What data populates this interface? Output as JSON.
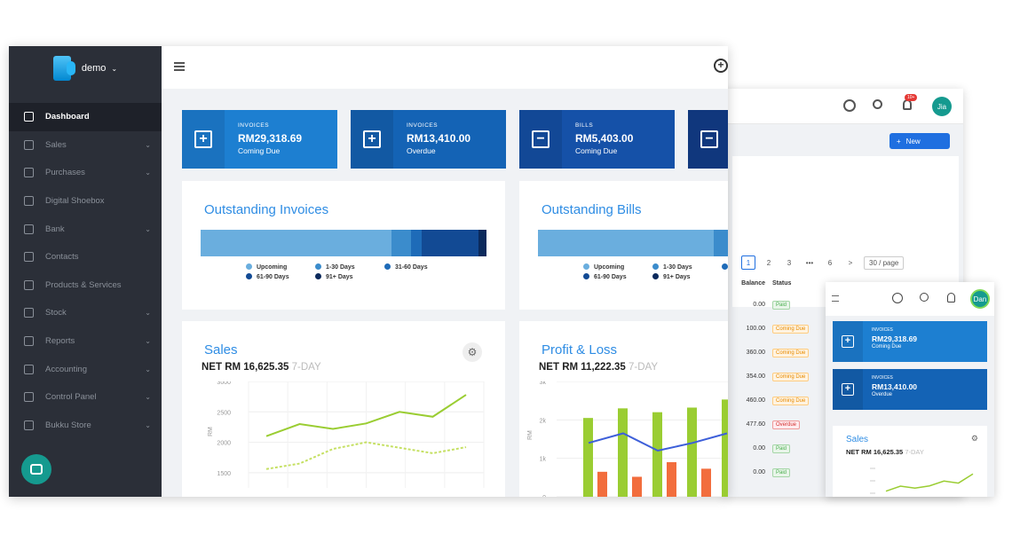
{
  "colors": {
    "sidebar_bg": "#2b2f38",
    "accent": "#2f8de4",
    "tile_blue_1": "#1d7fd1",
    "tile_blue_2": "#1463b5",
    "tile_blue_3": "#1551a8",
    "tile_blue_4": "#123f8f",
    "teal": "#159a8f"
  },
  "sidebar": {
    "org_name": "demo",
    "items": [
      {
        "label": "Dashboard",
        "icon": "chart-icon",
        "active": true,
        "expandable": false
      },
      {
        "label": "Sales",
        "icon": "plus-square-icon",
        "expandable": true
      },
      {
        "label": "Purchases",
        "icon": "minus-square-icon",
        "expandable": true
      },
      {
        "label": "Digital Shoebox",
        "icon": "shoebox-icon",
        "expandable": false
      },
      {
        "label": "Bank",
        "icon": "bank-icon",
        "expandable": true
      },
      {
        "label": "Contacts",
        "icon": "contacts-icon",
        "expandable": false
      },
      {
        "label": "Products & Services",
        "icon": "gear-icon",
        "expandable": false
      },
      {
        "label": "Stock",
        "icon": "stock-icon",
        "expandable": true
      },
      {
        "label": "Reports",
        "icon": "report-icon",
        "expandable": true
      },
      {
        "label": "Accounting",
        "icon": "book-icon",
        "expandable": true
      },
      {
        "label": "Control Panel",
        "icon": "panel-icon",
        "expandable": true
      },
      {
        "label": "Bukku Store",
        "icon": "store-icon",
        "expandable": true
      }
    ]
  },
  "tiles": [
    {
      "label": "INVOICES",
      "amount": "RM29,318.69",
      "sub": "Coming Due",
      "sign": "+"
    },
    {
      "label": "INVOICES",
      "amount": "RM13,410.00",
      "sub": "Overdue",
      "sign": "+"
    },
    {
      "label": "BILLS",
      "amount": "RM5,403.00",
      "sub": "Coming Due",
      "sign": "−"
    },
    {
      "label": "",
      "amount": "",
      "sub": "",
      "sign": "−"
    }
  ],
  "outstanding_invoices": {
    "title": "Outstanding Invoices",
    "segments": [
      0.68,
      0.07,
      0.04,
      0.2,
      0.03
    ]
  },
  "outstanding_bills": {
    "title": "Outstanding Bills",
    "segments": [
      0.6,
      0.12,
      0.28
    ]
  },
  "aging_legend": [
    {
      "label": "Upcoming",
      "color": "#6aaede"
    },
    {
      "label": "1-30 Days",
      "color": "#3b8ccc"
    },
    {
      "label": "31-60 Days",
      "color": "#1e6bb8"
    },
    {
      "label": "61-90 Days",
      "color": "#124a94"
    },
    {
      "label": "91+ Days",
      "color": "#0b2a5c"
    }
  ],
  "sales": {
    "title": "Sales",
    "net_label": "NET",
    "net_value": "RM 16,625.35",
    "period": "7-DAY",
    "ylabel": "RM"
  },
  "profit_loss": {
    "title": "Profit & Loss",
    "net_label": "NET",
    "net_value": "RM 11,222.35",
    "period": "7-DAY",
    "ylabel": "RM"
  },
  "chart_data": [
    {
      "type": "line",
      "title": "Sales",
      "ylabel": "RM",
      "yticks": [
        "3000",
        "2500",
        "2000",
        "1500"
      ],
      "ylim": [
        1250,
        3000
      ],
      "series": [
        {
          "values": [
            2100,
            2300,
            2220,
            2310,
            2500,
            2420,
            2780
          ],
          "color": "#9acd32",
          "style": "solid"
        },
        {
          "values": [
            1560,
            1650,
            1890,
            2000,
            1910,
            1820,
            1920
          ],
          "color": "#c5e063",
          "style": "dashed"
        }
      ]
    },
    {
      "type": "bar",
      "title": "Profit & Loss",
      "ylabel": "RM",
      "yticks": [
        "3k",
        "2k",
        "1k",
        "0"
      ],
      "ylim": [
        0,
        3000
      ],
      "series": [
        {
          "values": [
            2050,
            2300,
            2200,
            2320,
            2530
          ],
          "color": "#9acd32"
        },
        {
          "values": [
            650,
            520,
            900,
            730
          ],
          "color": "#f26d3d"
        },
        {
          "values": [
            1400,
            1650,
            1200,
            1400,
            1650
          ],
          "color": "#3d5fd9"
        }
      ]
    }
  ],
  "back_window": {
    "notification_count": "10+",
    "user_initials": "Jia",
    "new_button": "New",
    "pager": {
      "pages": [
        "1",
        "2",
        "3",
        "•••",
        "6"
      ],
      "next": ">",
      "page_size": "30 / page"
    },
    "table": {
      "headers": [
        "Balance",
        "Status"
      ],
      "rows": [
        {
          "balance": "0.00",
          "status": "Paid",
          "kind": "paid"
        },
        {
          "balance": "100.00",
          "status": "Coming Due",
          "kind": "due"
        },
        {
          "balance": "360.00",
          "status": "Coming Due",
          "kind": "due"
        },
        {
          "balance": "354.00",
          "status": "Coming Due",
          "kind": "due"
        },
        {
          "balance": "460.00",
          "status": "Coming Due",
          "kind": "due"
        },
        {
          "balance": "477.60",
          "status": "Overdue",
          "kind": "over"
        },
        {
          "balance": "0.00",
          "status": "Paid",
          "kind": "paid"
        },
        {
          "balance": "0.00",
          "status": "Paid",
          "kind": "paid"
        }
      ]
    }
  },
  "phone": {
    "user_initials": "Dan",
    "tiles": [
      {
        "label": "INVOICES",
        "amount": "RM29,318.69",
        "sub": "Coming Due"
      },
      {
        "label": "INVOICES",
        "amount": "RM13,410.00",
        "sub": "Overdue"
      }
    ],
    "sales": {
      "title": "Sales",
      "net_label": "NET",
      "net_value": "RM 16,625.35",
      "period": "7-DAY"
    }
  }
}
